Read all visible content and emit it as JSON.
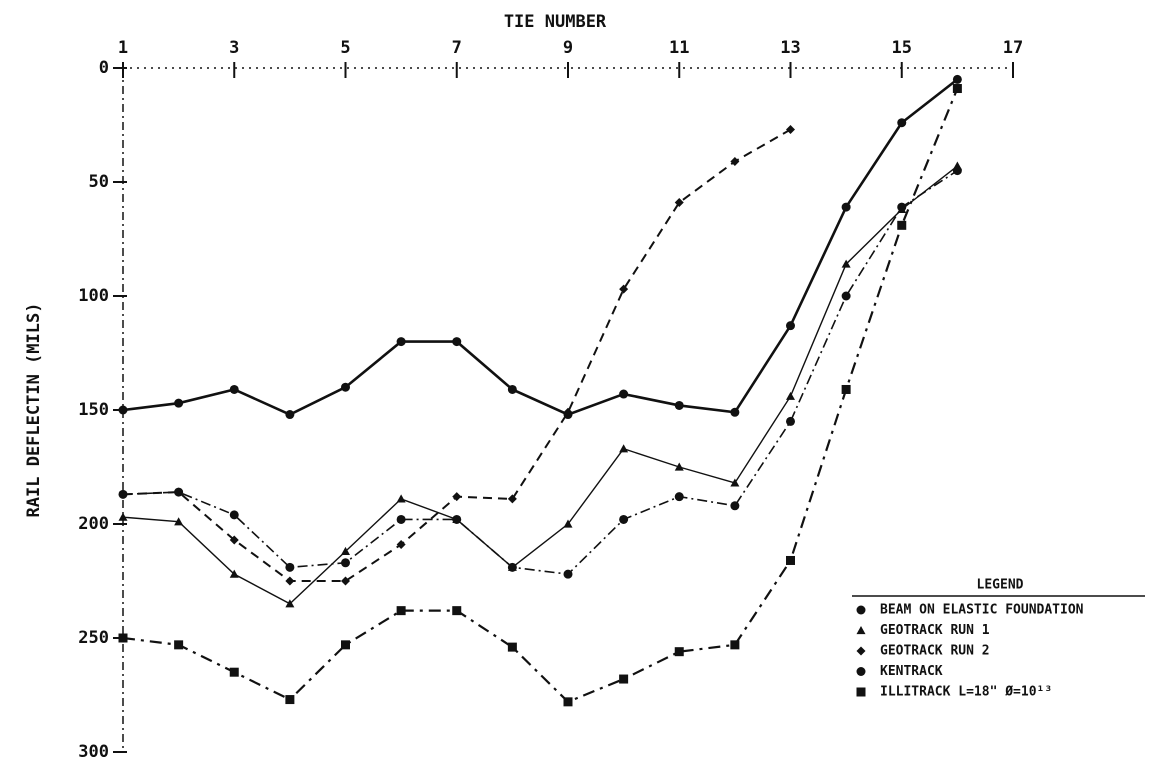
{
  "chart_data": {
    "type": "line",
    "x_label": "TIE NUMBER",
    "y_label": "RAIL DEFLECTIN (MILS)",
    "x": [
      1,
      2,
      3,
      4,
      5,
      6,
      7,
      8,
      9,
      10,
      11,
      12,
      13,
      14,
      15,
      16
    ],
    "xlim": [
      1,
      17
    ],
    "xticks": [
      1,
      3,
      5,
      7,
      9,
      11,
      13,
      15,
      17
    ],
    "ylim": [
      0,
      300
    ],
    "yticks": [
      0,
      50,
      100,
      150,
      200,
      250,
      300
    ],
    "y_inverted": true,
    "x_axis_position": "top",
    "legend_title": "LEGEND",
    "legend_position": "lower right",
    "series": [
      {
        "name": "BEAM ON ELASTIC FOUNDATION",
        "color": "#111111",
        "dash": "solid",
        "marker": "circle",
        "values": [
          150,
          147,
          141,
          152,
          140,
          120,
          120,
          141,
          152,
          143,
          148,
          151,
          113,
          61,
          24,
          5
        ]
      },
      {
        "name": "GEOTRACK  RUN 1",
        "color": "#111111",
        "dash": "thin",
        "marker": "triangle",
        "values": [
          197,
          199,
          222,
          235,
          212,
          189,
          198,
          219,
          200,
          167,
          175,
          182,
          144,
          86,
          62,
          43
        ]
      },
      {
        "name": "GEOTRACK  RUN 2",
        "color": "#111111",
        "dash": "dashed",
        "marker": "diamond",
        "values": [
          187,
          186,
          207,
          225,
          225,
          209,
          188,
          189,
          151,
          97,
          59,
          41,
          27,
          null,
          null,
          null
        ]
      },
      {
        "name": "KENTRACK",
        "color": "#111111",
        "dash": "dashdot",
        "marker": "circle",
        "values": [
          187,
          186,
          196,
          219,
          217,
          198,
          198,
          219,
          222,
          198,
          188,
          192,
          155,
          100,
          61,
          45
        ]
      },
      {
        "name": "ILLITRACK  L=18\"  Ø=10¹³",
        "color": "#111111",
        "dash": "longdash",
        "marker": "square",
        "values": [
          250,
          253,
          265,
          277,
          253,
          238,
          238,
          254,
          278,
          268,
          256,
          253,
          216,
          141,
          69,
          9
        ]
      }
    ]
  }
}
